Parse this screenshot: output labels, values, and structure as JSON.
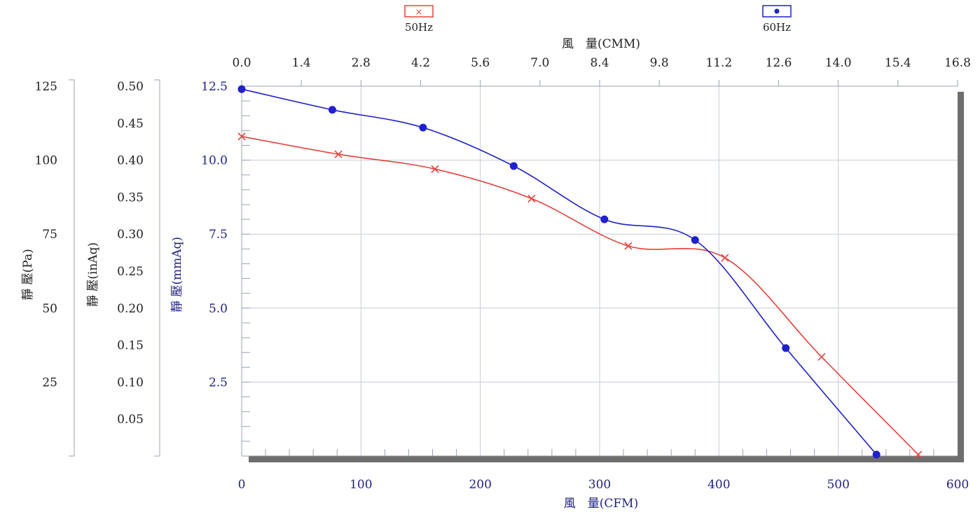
{
  "chart_data": {
    "type": "line",
    "legend": {
      "placement": "top",
      "entries": [
        {
          "name": "50Hz",
          "color": "#e8403a",
          "marker": "x"
        },
        {
          "name": "60Hz",
          "color": "#1f1fd6",
          "marker": "dot"
        }
      ]
    },
    "x_bottom": {
      "label": "風　量(CFM)",
      "ticks": [
        "0",
        "100",
        "200",
        "300",
        "400",
        "500",
        "600"
      ],
      "range": [
        0,
        600
      ],
      "grid": true
    },
    "x_top": {
      "label": "風　量(CMM)",
      "ticks": [
        "0.0",
        "1.4",
        "2.8",
        "4.2",
        "5.6",
        "7.0",
        "8.4",
        "9.8",
        "11.2",
        "12.6",
        "14.0",
        "15.4",
        "16.8"
      ],
      "range": [
        0,
        16.8
      ]
    },
    "y_axes": [
      {
        "label": "靜 壓(Pa)",
        "ticks": [
          "125",
          "100",
          "75",
          "50",
          "25"
        ],
        "range": [
          0,
          125
        ]
      },
      {
        "label": "靜 壓(inAq)",
        "ticks": [
          "0.50",
          "0.45",
          "0.40",
          "0.35",
          "0.30",
          "0.25",
          "0.20",
          "0.15",
          "0.10",
          "0.05"
        ],
        "range": [
          0,
          0.5
        ]
      },
      {
        "label": "靜 壓(mmAq)",
        "ticks": [
          "12.5",
          "10.0",
          "7.5",
          "5.0",
          "2.5"
        ],
        "range": [
          0,
          12.5
        ],
        "grid": true
      }
    ],
    "series": [
      {
        "name": "50Hz",
        "color": "#e8403a",
        "x": [
          0,
          81,
          162,
          243,
          324,
          405,
          486,
          567
        ],
        "y": [
          10.8,
          10.2,
          9.7,
          8.7,
          7.1,
          6.7,
          3.35,
          0.05
        ]
      },
      {
        "name": "60Hz",
        "color": "#1f1fd6",
        "x": [
          0,
          76,
          152,
          228,
          304,
          380,
          456,
          532
        ],
        "y": [
          12.4,
          11.7,
          11.1,
          9.8,
          8.0,
          7.3,
          3.65,
          0.05
        ]
      }
    ]
  }
}
